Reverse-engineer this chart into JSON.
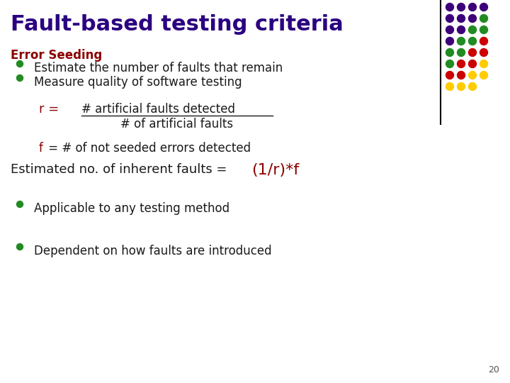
{
  "title": "Fault-based testing criteria",
  "title_color": "#2b0080",
  "title_fontsize": 22,
  "section_label": "Error Seeding",
  "section_color": "#8b0000",
  "section_fontsize": 12,
  "bullet_color": "#228B22",
  "bullet_fontsize": 12,
  "text_color": "#1a1a1a",
  "bullets": [
    "Estimate the number of faults that remain",
    "Measure quality of software testing"
  ],
  "formula_r_color": "#8b0000",
  "formula_numerator": "# artificial faults detected",
  "formula_denominator": "# of artificial faults",
  "formula_f_color": "#8b0000",
  "estimated_prefix": "Estimated no. of inherent faults = ",
  "estimated_formula": "(1/r)*f",
  "estimated_formula_color": "#8b0000",
  "estimated_fontsize": 13,
  "extra_bullets": [
    "Applicable to any testing method",
    "Dependent on how faults are introduced"
  ],
  "page_number": "20",
  "background_color": "#ffffff",
  "dot_grid_rows": [
    [
      "#3d007a",
      "#3d007a",
      "#3d007a",
      "#3d007a"
    ],
    [
      "#3d007a",
      "#3d007a",
      "#3d007a",
      "#228B22"
    ],
    [
      "#3d007a",
      "#3d007a",
      "#228B22",
      "#228B22"
    ],
    [
      "#3d007a",
      "#228B22",
      "#228B22",
      "#cc0000"
    ],
    [
      "#228B22",
      "#228B22",
      "#cc0000",
      "#cc0000"
    ],
    [
      "#228B22",
      "#cc0000",
      "#cc0000",
      "#ffcc00"
    ],
    [
      "#cc0000",
      "#cc0000",
      "#ffcc00",
      "#ffcc00"
    ],
    [
      "#ffcc00",
      "#ffcc00",
      "#ffcc00",
      ""
    ]
  ],
  "vline_color": "#000000"
}
